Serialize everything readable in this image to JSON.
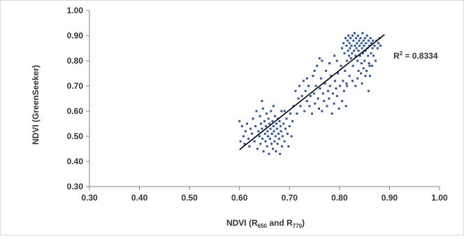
{
  "chart_data": {
    "type": "scatter",
    "title": "",
    "xlabel": {
      "prefix": "NDVI (R",
      "sub1": "650",
      "middle": "  and R",
      "sub2": "770",
      "suffix": ")"
    },
    "ylabel": "NDVI (GreenSeeker)",
    "xlim": [
      0.3,
      1.0
    ],
    "ylim": [
      0.3,
      1.0
    ],
    "x_ticks": [
      "0.30",
      "0.40",
      "0.50",
      "0.60",
      "0.70",
      "0.80",
      "0.90",
      "1.00"
    ],
    "y_ticks": [
      "0.30",
      "0.40",
      "0.50",
      "0.60",
      "0.70",
      "0.80",
      "0.90",
      "1.00"
    ],
    "grid": false,
    "legend": "none",
    "colors": {
      "points": "#2f5597",
      "trendline": "#000000",
      "axis": "#808080",
      "border": "#d9d9d9"
    },
    "annotation": {
      "r2_prefix": "R",
      "r2_sup": "2",
      "r2_text": " = 0.8334"
    },
    "trendline": {
      "x": [
        0.6,
        0.89
      ],
      "y": [
        0.447,
        0.904
      ]
    },
    "series": [
      {
        "points": [
          [
            0.6,
            0.56
          ],
          [
            0.602,
            0.48
          ],
          [
            0.605,
            0.54
          ],
          [
            0.608,
            0.5
          ],
          [
            0.61,
            0.47
          ],
          [
            0.612,
            0.52
          ],
          [
            0.615,
            0.55
          ],
          [
            0.618,
            0.49
          ],
          [
            0.62,
            0.46
          ],
          [
            0.622,
            0.53
          ],
          [
            0.625,
            0.51
          ],
          [
            0.627,
            0.57
          ],
          [
            0.63,
            0.48
          ],
          [
            0.632,
            0.54
          ],
          [
            0.634,
            0.6
          ],
          [
            0.636,
            0.45
          ],
          [
            0.638,
            0.52
          ],
          [
            0.64,
            0.5
          ],
          [
            0.641,
            0.58
          ],
          [
            0.642,
            0.47
          ],
          [
            0.643,
            0.55
          ],
          [
            0.645,
            0.53
          ],
          [
            0.646,
            0.49
          ],
          [
            0.647,
            0.61
          ],
          [
            0.648,
            0.44
          ],
          [
            0.65,
            0.56
          ],
          [
            0.651,
            0.51
          ],
          [
            0.652,
            0.48
          ],
          [
            0.653,
            0.54
          ],
          [
            0.654,
            0.59
          ],
          [
            0.655,
            0.46
          ],
          [
            0.656,
            0.52
          ],
          [
            0.657,
            0.5
          ],
          [
            0.658,
            0.57
          ],
          [
            0.659,
            0.43
          ],
          [
            0.66,
            0.55
          ],
          [
            0.661,
            0.49
          ],
          [
            0.662,
            0.53
          ],
          [
            0.663,
            0.6
          ],
          [
            0.664,
            0.47
          ],
          [
            0.665,
            0.51
          ],
          [
            0.666,
            0.56
          ],
          [
            0.667,
            0.45
          ],
          [
            0.668,
            0.54
          ],
          [
            0.669,
            0.52
          ],
          [
            0.67,
            0.48
          ],
          [
            0.671,
            0.58
          ],
          [
            0.672,
            0.5
          ],
          [
            0.673,
            0.44
          ],
          [
            0.674,
            0.55
          ],
          [
            0.675,
            0.53
          ],
          [
            0.676,
            0.47
          ],
          [
            0.677,
            0.57
          ],
          [
            0.678,
            0.51
          ],
          [
            0.679,
            0.49
          ],
          [
            0.68,
            0.56
          ],
          [
            0.681,
            0.43
          ],
          [
            0.682,
            0.54
          ],
          [
            0.683,
            0.52
          ],
          [
            0.684,
            0.6
          ],
          [
            0.685,
            0.46
          ],
          [
            0.686,
            0.5
          ],
          [
            0.688,
            0.55
          ],
          [
            0.69,
            0.48
          ],
          [
            0.692,
            0.53
          ],
          [
            0.694,
            0.57
          ],
          [
            0.696,
            0.51
          ],
          [
            0.698,
            0.46
          ],
          [
            0.7,
            0.54
          ],
          [
            0.702,
            0.59
          ],
          [
            0.704,
            0.5
          ],
          [
            0.706,
            0.56
          ],
          [
            0.645,
            0.64
          ],
          [
            0.668,
            0.62
          ],
          [
            0.69,
            0.6
          ],
          [
            0.708,
            0.62
          ],
          [
            0.712,
            0.68
          ],
          [
            0.715,
            0.59
          ],
          [
            0.718,
            0.65
          ],
          [
            0.72,
            0.7
          ],
          [
            0.722,
            0.62
          ],
          [
            0.725,
            0.66
          ],
          [
            0.728,
            0.72
          ],
          [
            0.73,
            0.6
          ],
          [
            0.732,
            0.68
          ],
          [
            0.735,
            0.64
          ],
          [
            0.738,
            0.7
          ],
          [
            0.74,
            0.62
          ],
          [
            0.742,
            0.66
          ],
          [
            0.745,
            0.59
          ],
          [
            0.747,
            0.74
          ],
          [
            0.749,
            0.67
          ],
          [
            0.751,
            0.63
          ],
          [
            0.753,
            0.7
          ],
          [
            0.755,
            0.78
          ],
          [
            0.757,
            0.65
          ],
          [
            0.759,
            0.61
          ],
          [
            0.761,
            0.69
          ],
          [
            0.763,
            0.73
          ],
          [
            0.765,
            0.6
          ],
          [
            0.767,
            0.67
          ],
          [
            0.769,
            0.64
          ],
          [
            0.771,
            0.71
          ],
          [
            0.773,
            0.76
          ],
          [
            0.775,
            0.62
          ],
          [
            0.777,
            0.68
          ],
          [
            0.779,
            0.65
          ],
          [
            0.781,
            0.7
          ],
          [
            0.783,
            0.74
          ],
          [
            0.785,
            0.59
          ],
          [
            0.787,
            0.67
          ],
          [
            0.789,
            0.63
          ],
          [
            0.791,
            0.72
          ],
          [
            0.793,
            0.69
          ],
          [
            0.795,
            0.66
          ],
          [
            0.797,
            0.75
          ],
          [
            0.799,
            0.61
          ],
          [
            0.801,
            0.7
          ],
          [
            0.803,
            0.78
          ],
          [
            0.805,
            0.64
          ],
          [
            0.807,
            0.72
          ],
          [
            0.809,
            0.68
          ],
          [
            0.811,
            0.76
          ],
          [
            0.813,
            0.62
          ],
          [
            0.815,
            0.7
          ],
          [
            0.76,
            0.81
          ],
          [
            0.79,
            0.82
          ],
          [
            0.795,
            0.8
          ],
          [
            0.75,
            0.76
          ],
          [
            0.735,
            0.73
          ],
          [
            0.765,
            0.8
          ],
          [
            0.78,
            0.79
          ],
          [
            0.805,
            0.85
          ],
          [
            0.808,
            0.87
          ],
          [
            0.81,
            0.83
          ],
          [
            0.812,
            0.89
          ],
          [
            0.814,
            0.86
          ],
          [
            0.815,
            0.8
          ],
          [
            0.816,
            0.88
          ],
          [
            0.817,
            0.84
          ],
          [
            0.818,
            0.9
          ],
          [
            0.819,
            0.82
          ],
          [
            0.82,
            0.87
          ],
          [
            0.821,
            0.85
          ],
          [
            0.822,
            0.89
          ],
          [
            0.823,
            0.81
          ],
          [
            0.824,
            0.86
          ],
          [
            0.825,
            0.83
          ],
          [
            0.826,
            0.9
          ],
          [
            0.827,
            0.78
          ],
          [
            0.828,
            0.88
          ],
          [
            0.829,
            0.84
          ],
          [
            0.83,
            0.91
          ],
          [
            0.831,
            0.86
          ],
          [
            0.832,
            0.82
          ],
          [
            0.833,
            0.89
          ],
          [
            0.834,
            0.85
          ],
          [
            0.835,
            0.87
          ],
          [
            0.836,
            0.8
          ],
          [
            0.837,
            0.9
          ],
          [
            0.838,
            0.84
          ],
          [
            0.839,
            0.88
          ],
          [
            0.84,
            0.86
          ],
          [
            0.841,
            0.82
          ],
          [
            0.842,
            0.89
          ],
          [
            0.843,
            0.75
          ],
          [
            0.844,
            0.87
          ],
          [
            0.845,
            0.85
          ],
          [
            0.846,
            0.91
          ],
          [
            0.847,
            0.83
          ],
          [
            0.848,
            0.88
          ],
          [
            0.849,
            0.86
          ],
          [
            0.85,
            0.8
          ],
          [
            0.851,
            0.89
          ],
          [
            0.852,
            0.84
          ],
          [
            0.853,
            0.87
          ],
          [
            0.854,
            0.76
          ],
          [
            0.855,
            0.9
          ],
          [
            0.856,
            0.85
          ],
          [
            0.857,
            0.82
          ],
          [
            0.858,
            0.88
          ],
          [
            0.859,
            0.79
          ],
          [
            0.86,
            0.86
          ],
          [
            0.861,
            0.74
          ],
          [
            0.862,
            0.89
          ],
          [
            0.863,
            0.83
          ],
          [
            0.864,
            0.87
          ],
          [
            0.865,
            0.78
          ],
          [
            0.866,
            0.85
          ],
          [
            0.867,
            0.88
          ],
          [
            0.868,
            0.82
          ],
          [
            0.87,
            0.86
          ],
          [
            0.872,
            0.8
          ],
          [
            0.874,
            0.88
          ],
          [
            0.876,
            0.85
          ],
          [
            0.878,
            0.87
          ],
          [
            0.88,
            0.89
          ],
          [
            0.882,
            0.86
          ],
          [
            0.826,
            0.72
          ],
          [
            0.832,
            0.7
          ],
          [
            0.838,
            0.76
          ],
          [
            0.845,
            0.71
          ],
          [
            0.852,
            0.74
          ],
          [
            0.858,
            0.68
          ],
          [
            0.86,
            0.78
          ],
          [
            0.848,
            0.77
          ],
          [
            0.82,
            0.74
          ],
          [
            0.814,
            0.71
          ],
          [
            0.836,
            0.73
          ],
          [
            0.844,
            0.79
          ]
        ]
      }
    ]
  }
}
